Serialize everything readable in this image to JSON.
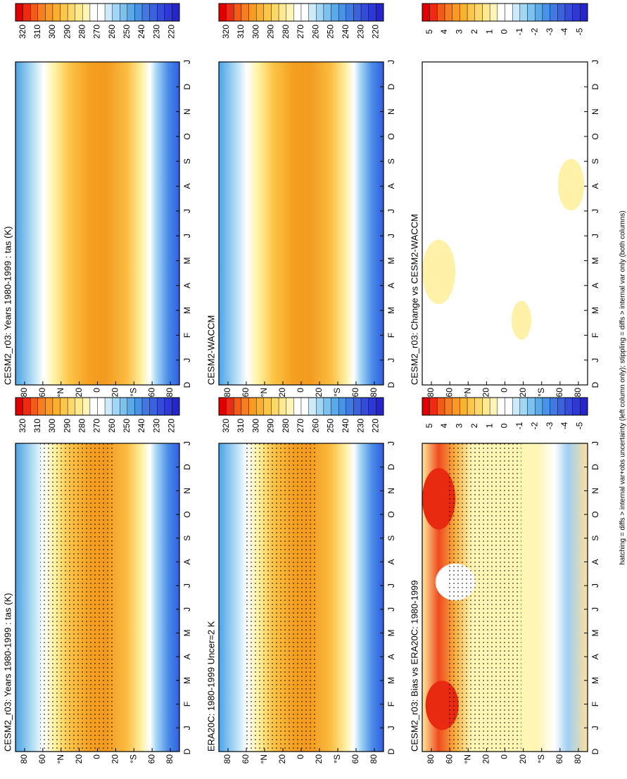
{
  "panels": [
    {
      "title": "CESM2_r03: Years 1980-1999 : tas (K)",
      "colorbar": {
        "labels": [
          320,
          310,
          300,
          290,
          280,
          270,
          260,
          250,
          240,
          230,
          220
        ]
      }
    },
    {
      "title": "CESM2_r03: Years 1980-1999 : tas (K)",
      "colorbar": {
        "labels": [
          320,
          310,
          300,
          290,
          280,
          270,
          260,
          250,
          240,
          230,
          220
        ]
      }
    },
    {
      "title": "ERA20C: 1980-1999 Uncer=2 K",
      "colorbar": {
        "labels": [
          320,
          310,
          300,
          290,
          280,
          270,
          260,
          250,
          240,
          230,
          220
        ]
      }
    },
    {
      "title": "CESM2-WACCM",
      "colorbar": {
        "labels": [
          320,
          310,
          300,
          290,
          280,
          270,
          260,
          250,
          240,
          230,
          220
        ]
      }
    },
    {
      "title": "CESM2_r03: Bias vs ERA20C: 1980-1999",
      "colorbar": {
        "labels": [
          5,
          4,
          3,
          2,
          1,
          0,
          -1,
          -2,
          -3,
          -4,
          -5
        ]
      }
    },
    {
      "title": "CESM2_r03: Change vs CESM2-WACCM",
      "colorbar": {
        "labels": [
          5,
          4,
          3,
          2,
          1,
          0,
          -1,
          -2,
          -3,
          -4,
          -5
        ]
      }
    }
  ],
  "axes": {
    "months": [
      "D",
      "J",
      "F",
      "M",
      "A",
      "M",
      "J",
      "J",
      "A",
      "S",
      "O",
      "N",
      "D",
      "J"
    ],
    "latitudes": [
      "80",
      "60",
      "°N",
      "20",
      "0",
      "20",
      "°S",
      "60",
      "80"
    ]
  },
  "footer": "hatching = diffs > internal var+obs uncertainty (left column only); stippling = diffs > internal var only (both columns)"
}
